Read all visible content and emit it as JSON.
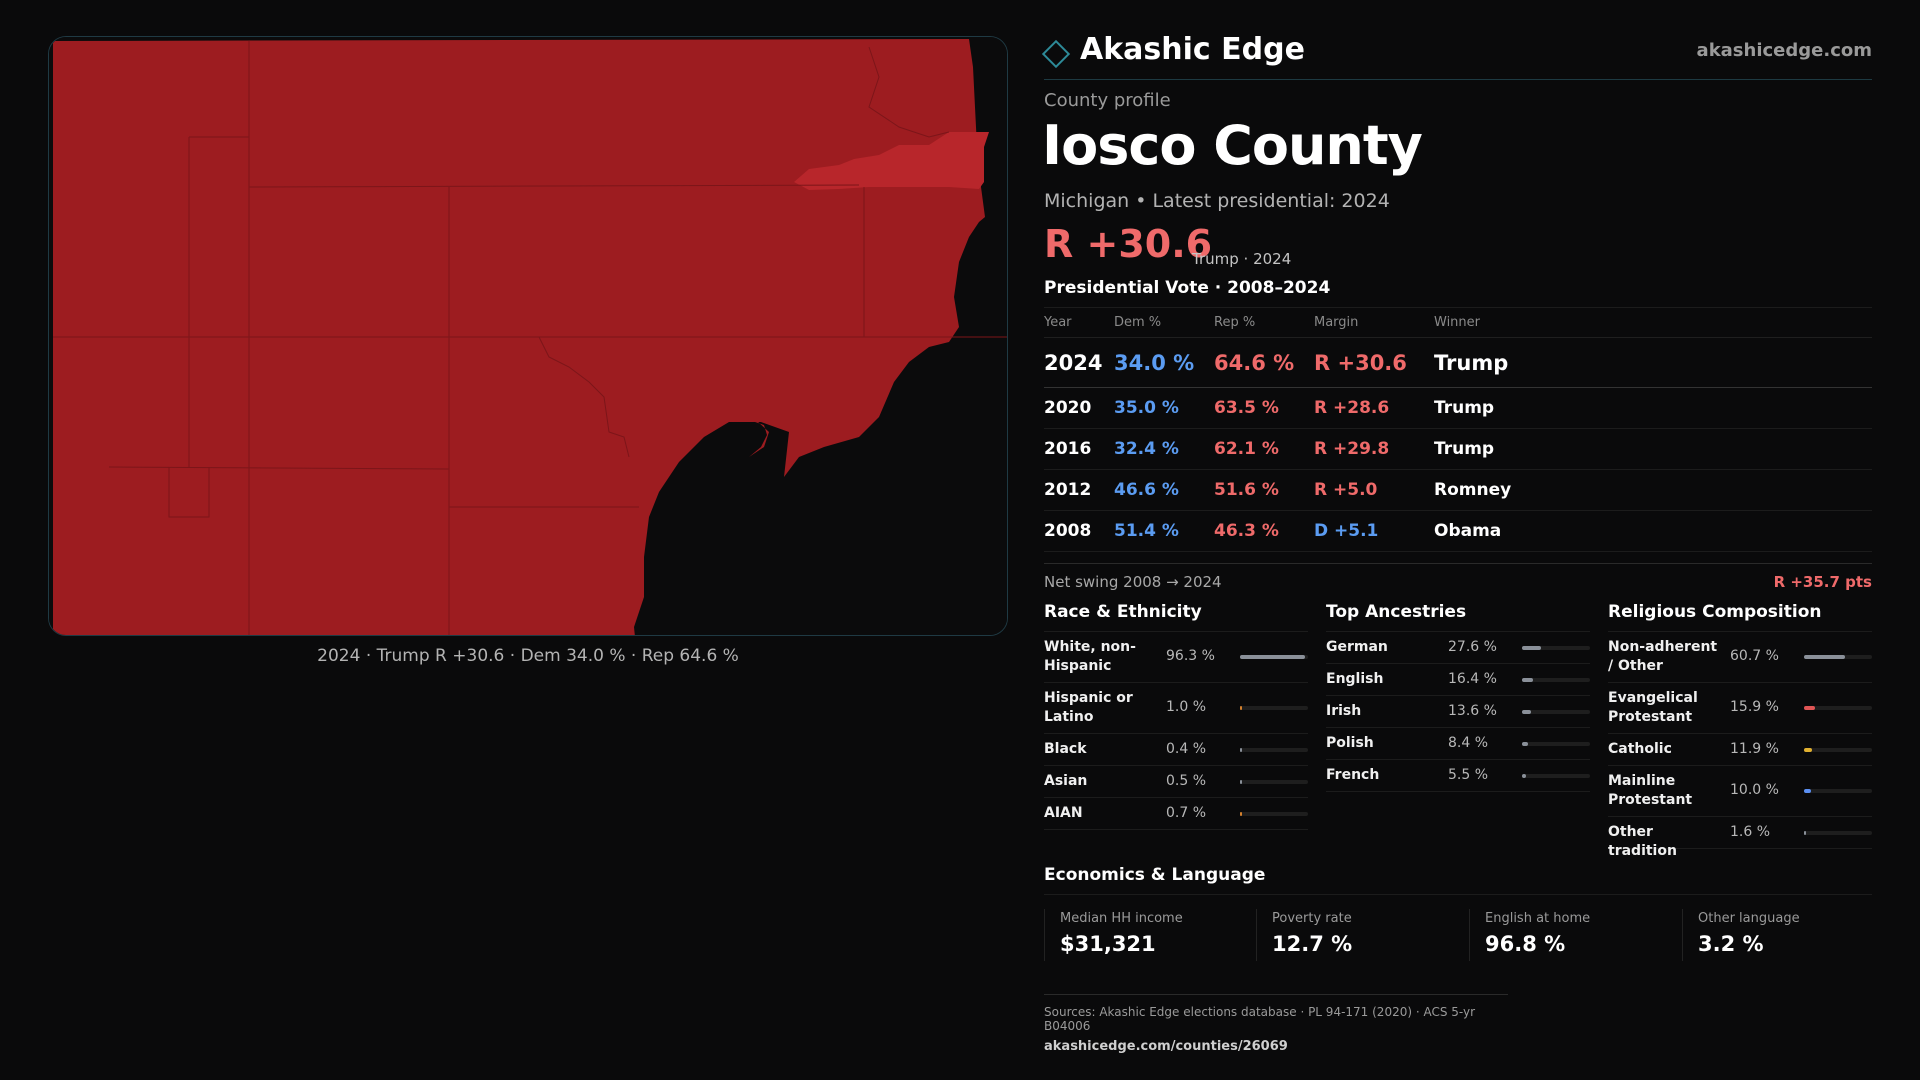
{
  "brand": {
    "name": "Akashic Edge",
    "url": "akashicedge.com",
    "logo_icon": "diamond-outline-icon",
    "accent": "#2d8a98"
  },
  "profile": {
    "kicker": "County profile",
    "county": "Iosco County",
    "subtitle": "Michigan • Latest presidential: 2024",
    "headline_margin": "R +30.6",
    "headline_note": "Trump · 2024"
  },
  "map": {
    "caption": "2024 · Trump R +30.6 · Dem 34.0 % · Rep 64.6 %",
    "fill_color": "#9d1c20",
    "highlight_color": "#b8262b",
    "water_color": "#0b0b0c"
  },
  "vote_table": {
    "title": "Presidential Vote · 2008–2024",
    "headers": {
      "year": "Year",
      "dem": "Dem %",
      "rep": "Rep %",
      "margin": "Margin",
      "winner": "Winner"
    },
    "rows": [
      {
        "year": "2024",
        "dem": "34.0 %",
        "rep": "64.6 %",
        "margin": "R +30.6",
        "winner": "Trump"
      },
      {
        "year": "2020",
        "dem": "35.0 %",
        "rep": "63.5 %",
        "margin": "R +28.6",
        "winner": "Trump"
      },
      {
        "year": "2016",
        "dem": "32.4 %",
        "rep": "62.1 %",
        "margin": "R +29.8",
        "winner": "Trump"
      },
      {
        "year": "2012",
        "dem": "46.6 %",
        "rep": "51.6 %",
        "margin": "R +5.0",
        "winner": "Romney"
      },
      {
        "year": "2008",
        "dem": "51.4 %",
        "rep": "46.3 %",
        "margin": "D +5.1",
        "winner": "Obama"
      }
    ],
    "swing_label": "Net swing 2008 → 2024",
    "swing_value": "R +35.7 pts"
  },
  "race": {
    "title": "Race & Ethnicity",
    "items": [
      {
        "label": "White, non-Hispanic",
        "value": "96.3 %",
        "fraction": 0.963,
        "color": "#8a9099"
      },
      {
        "label": "Hispanic or Latino",
        "value": "1.0 %",
        "fraction": 0.01,
        "color": "#d4812e"
      },
      {
        "label": "Black",
        "value": "0.4 %",
        "fraction": 0.004,
        "color": "#8a9099"
      },
      {
        "label": "Asian",
        "value": "0.5 %",
        "fraction": 0.005,
        "color": "#8a9099"
      },
      {
        "label": "AIAN",
        "value": "0.7 %",
        "fraction": 0.007,
        "color": "#d4812e"
      }
    ]
  },
  "ancestry": {
    "title": "Top Ancestries",
    "items": [
      {
        "label": "German",
        "value": "27.6 %",
        "fraction": 0.276,
        "color": "#8a9099"
      },
      {
        "label": "English",
        "value": "16.4 %",
        "fraction": 0.164,
        "color": "#8a9099"
      },
      {
        "label": "Irish",
        "value": "13.6 %",
        "fraction": 0.136,
        "color": "#8a9099"
      },
      {
        "label": "Polish",
        "value": "8.4 %",
        "fraction": 0.084,
        "color": "#8a9099"
      },
      {
        "label": "French",
        "value": "5.5 %",
        "fraction": 0.055,
        "color": "#8a9099"
      }
    ]
  },
  "religion": {
    "title": "Religious Composition",
    "items": [
      {
        "label": "Non-adherent / Other",
        "value": "60.7 %",
        "fraction": 0.607,
        "color": "#8a9099"
      },
      {
        "label": "Evangelical Protestant",
        "value": "15.9 %",
        "fraction": 0.159,
        "color": "#e05555"
      },
      {
        "label": "Catholic",
        "value": "11.9 %",
        "fraction": 0.119,
        "color": "#e0b030"
      },
      {
        "label": "Mainline Protestant",
        "value": "10.0 %",
        "fraction": 0.1,
        "color": "#5b8ff2"
      },
      {
        "label": "Other tradition",
        "value": "1.6 %",
        "fraction": 0.016,
        "color": "#8a9099"
      }
    ]
  },
  "economics": {
    "title": "Economics & Language",
    "cards": [
      {
        "label": "Median HH income",
        "value": "$31,321"
      },
      {
        "label": "Poverty rate",
        "value": "12.7 %"
      },
      {
        "label": "English at home",
        "value": "96.8 %"
      },
      {
        "label": "Other language",
        "value": "3.2 %"
      }
    ]
  },
  "sources": {
    "line": "Sources: Akashic Edge elections database · PL 94-171 (2020) · ACS 5-yr B04006",
    "url": "akashicedge.com/counties/26069"
  }
}
